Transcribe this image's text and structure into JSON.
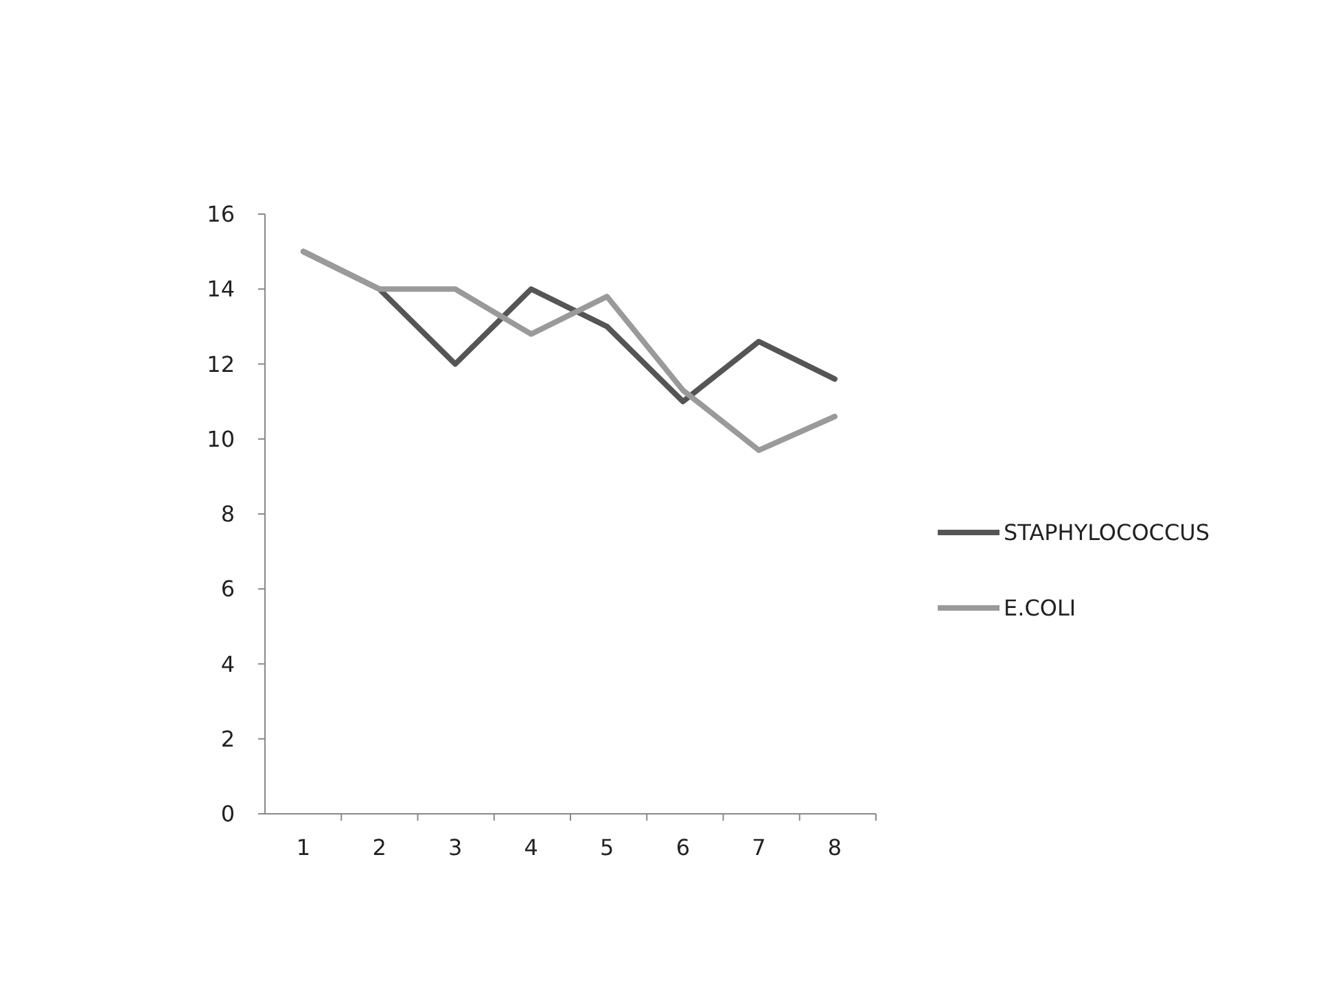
{
  "chart_data": {
    "type": "line",
    "categories": [
      "1",
      "2",
      "3",
      "4",
      "5",
      "6",
      "7",
      "8"
    ],
    "series": [
      {
        "name": "STAPHYLOCOCCUS",
        "color": "#555555",
        "values": [
          15,
          14,
          12,
          14,
          13,
          11,
          12.6,
          11.6
        ]
      },
      {
        "name": "E.COLI",
        "color": "#9a9a9a",
        "values": [
          15,
          14,
          14,
          12.8,
          13.8,
          11.3,
          9.7,
          10.6
        ]
      }
    ],
    "ylim": [
      0,
      16
    ],
    "yticks": [
      0,
      2,
      4,
      6,
      8,
      10,
      12,
      14,
      16
    ],
    "grid": false,
    "legend": "right",
    "marker": "none",
    "line_style": "solid"
  }
}
